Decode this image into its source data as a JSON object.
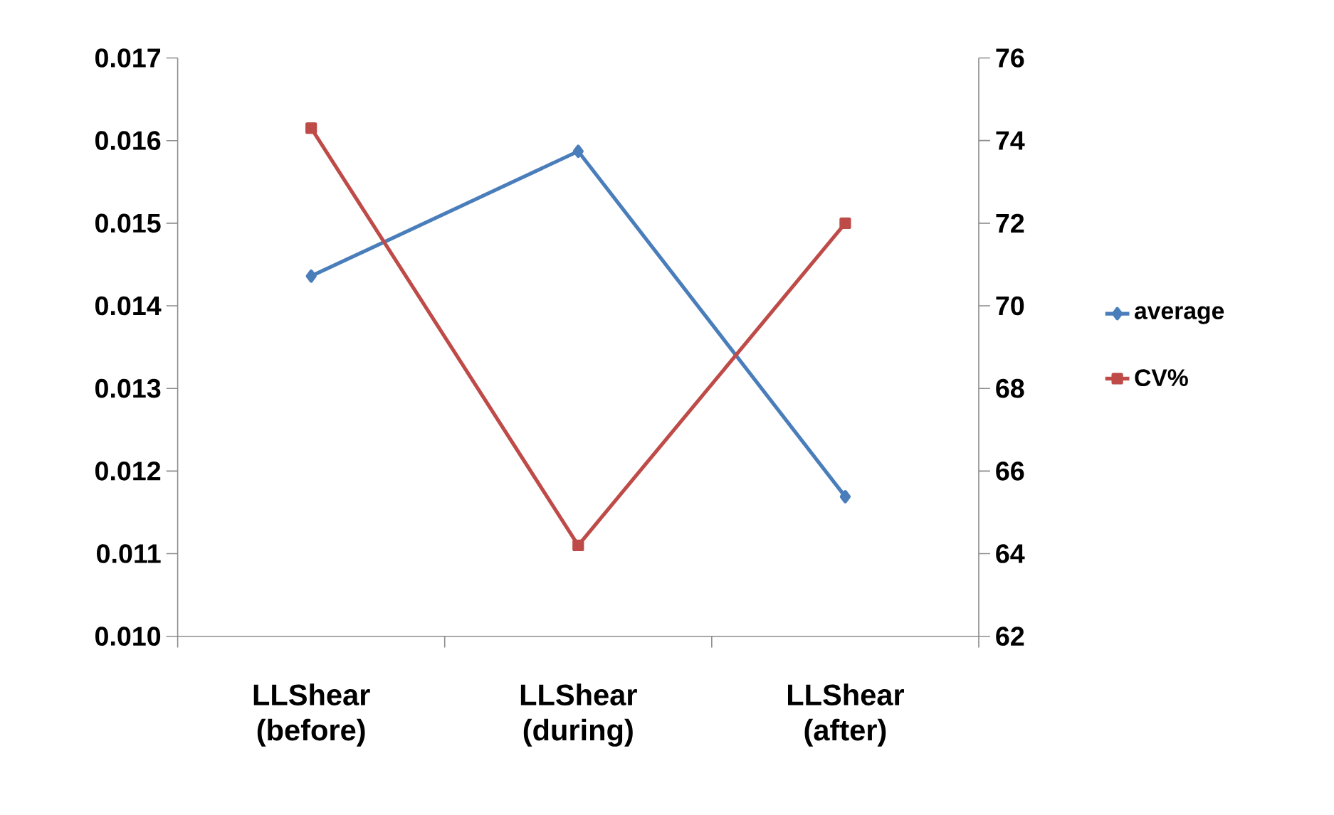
{
  "chart_data": {
    "type": "line",
    "categories": [
      "LLShear (before)",
      "LLShear (during)",
      "LLShear (after)"
    ],
    "series": [
      {
        "name": "average",
        "color": "#4a7ebb",
        "marker": "diamond",
        "values": [
          0.01436,
          0.01587,
          0.01169
        ]
      },
      {
        "name": "CV%",
        "color": "#be4b48",
        "marker": "square",
        "axis": "y2",
        "values": [
          74.3,
          64.2,
          72.0
        ]
      }
    ],
    "ylim": [
      0.01,
      0.017
    ],
    "yticks": [
      {
        "value": 0.01,
        "label": "0.010"
      },
      {
        "value": 0.011,
        "label": "0.011"
      },
      {
        "value": 0.012,
        "label": "0.012"
      },
      {
        "value": 0.013,
        "label": "0.013"
      },
      {
        "value": 0.014,
        "label": "0.014"
      },
      {
        "value": 0.015,
        "label": "0.015"
      },
      {
        "value": 0.016,
        "label": "0.016"
      },
      {
        "value": 0.017,
        "label": "0.017"
      }
    ],
    "y2lim": [
      62,
      76
    ],
    "y2ticks": [
      62,
      64,
      66,
      68,
      70,
      72,
      74,
      76
    ],
    "grid": false,
    "legend": "right"
  }
}
